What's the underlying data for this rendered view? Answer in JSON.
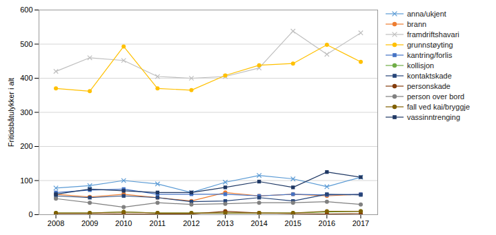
{
  "chart_data": {
    "type": "line",
    "ylabel": "Fritidsbåtulykker i alt",
    "x": [
      2008,
      2009,
      2010,
      2011,
      2012,
      2013,
      2014,
      2015,
      2016,
      2017
    ],
    "xlim": [
      2007.5,
      2017.5
    ],
    "xticks": [
      2008,
      2009,
      2010,
      2011,
      2012,
      2013,
      2014,
      2015,
      2016,
      2017
    ],
    "ylim": [
      0,
      600
    ],
    "yticks": [
      0,
      100,
      200,
      300,
      400,
      500,
      600
    ],
    "grid": true,
    "legend": "right",
    "series": [
      {
        "name": "anna/ukjent",
        "color": "#5b9bd5",
        "marker": "x",
        "values": [
          78,
          85,
          100,
          90,
          65,
          95,
          115,
          105,
          82,
          110
        ]
      },
      {
        "name": "brann",
        "color": "#ed7d31",
        "marker": "circle",
        "values": [
          60,
          52,
          60,
          50,
          40,
          65,
          55,
          60,
          55,
          60
        ]
      },
      {
        "name": "framdriftshavari",
        "color": "#bfbfbf",
        "marker": "x",
        "values": [
          420,
          460,
          452,
          405,
          400,
          405,
          430,
          538,
          470,
          533
        ]
      },
      {
        "name": "grunnstøyting",
        "color": "#ffc000",
        "marker": "circle",
        "values": [
          370,
          362,
          493,
          370,
          365,
          408,
          438,
          443,
          498,
          448
        ]
      },
      {
        "name": "kantring/forlis",
        "color": "#4472c4",
        "marker": "square",
        "values": [
          65,
          72,
          75,
          60,
          60,
          60,
          55,
          60,
          58,
          60
        ]
      },
      {
        "name": "kollisjon",
        "color": "#70ad47",
        "marker": "circle",
        "values": [
          5,
          5,
          8,
          5,
          5,
          5,
          5,
          5,
          8,
          10
        ]
      },
      {
        "name": "kontaktskade",
        "color": "#264478",
        "marker": "square",
        "values": [
          55,
          50,
          55,
          50,
          38,
          40,
          50,
          40,
          60,
          58
        ]
      },
      {
        "name": "personskade",
        "color": "#843c0c",
        "marker": "circle",
        "values": [
          3,
          3,
          2,
          2,
          2,
          10,
          5,
          3,
          2,
          3
        ]
      },
      {
        "name": "person over bord",
        "color": "#808080",
        "marker": "circle",
        "values": [
          47,
          35,
          22,
          35,
          30,
          32,
          35,
          35,
          38,
          30
        ]
      },
      {
        "name": "fall ved kai/bryggje",
        "color": "#806000",
        "marker": "circle",
        "values": [
          5,
          5,
          8,
          5,
          5,
          5,
          5,
          5,
          10,
          10
        ]
      },
      {
        "name": "vassinntrenging",
        "color": "#1f3864",
        "marker": "square",
        "values": [
          60,
          75,
          70,
          65,
          65,
          80,
          97,
          80,
          125,
          110
        ]
      }
    ]
  }
}
